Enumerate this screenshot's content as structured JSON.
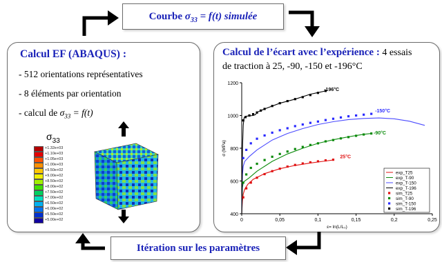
{
  "top_pill": {
    "prefix": "Courbe ",
    "sigma": "σ",
    "sub": "33",
    "suffix": " = f(t) simulée"
  },
  "bottom_pill": {
    "text": "Itération sur les paramètres"
  },
  "left_box": {
    "title": "Calcul EF (ABAQUS) :",
    "item1": "- 512 orientations représentatives",
    "item2": "- 8 éléments par orientation",
    "item3_prefix": "- calcul de ",
    "item3_sigma": "σ",
    "item3_sub": "33",
    "item3_suffix": " = f(t)",
    "legend_title_sigma": "σ",
    "legend_title_sub": "33",
    "legend_values": [
      "+1.32e+03",
      "+1.10e+03",
      "+1.05e+03",
      "+1.00e+03",
      "+9.50e+02",
      "+9.00e+02",
      "+8.50e+02",
      "+8.00e+02",
      "+7.50e+02",
      "+7.00e+02",
      "+6.50e+02",
      "+6.00e+02",
      "+5.50e+02",
      "+5.00e+02"
    ],
    "legend_colors": [
      "#b40000",
      "#e40000",
      "#ff5000",
      "#ff9000",
      "#ffc800",
      "#f0f000",
      "#a0f000",
      "#40e000",
      "#00d060",
      "#00e0c0",
      "#00b0f0",
      "#0070f0",
      "#0030d0",
      "#1000a0"
    ]
  },
  "right_box": {
    "title": "Calcul de l’écart avec l’expérience :",
    "title_tail": " 4 essais",
    "subtitle": "de traction à 25, -90, -150 et -196°C"
  },
  "chart_data": {
    "type": "line",
    "ylabel": "σ (MPa)",
    "xlabel": "ε= ln(L/L₀)",
    "xlim": [
      0,
      0.25
    ],
    "ylim": [
      400,
      1200
    ],
    "xticks": [
      "0",
      "0,05",
      "0,1",
      "0,15",
      "0,2",
      "0,25"
    ],
    "yticks": [
      "400",
      "600",
      "800",
      "1000",
      "1200"
    ],
    "annotations": [
      {
        "text": "-196°C",
        "x": 0.108,
        "y": 1150,
        "color": "#000000"
      },
      {
        "text": "-150°C",
        "x": 0.175,
        "y": 1020,
        "color": "#2b2bff"
      },
      {
        "text": "-90°C",
        "x": 0.173,
        "y": 885,
        "color": "#0a8a0a"
      },
      {
        "text": "25°C",
        "x": 0.129,
        "y": 740,
        "color": "#e01010"
      }
    ],
    "legend": {
      "position": "bottom-right",
      "entries": [
        "exp_T25",
        "exp_T-90",
        "exp_T-150",
        "exp_T-196",
        "sim_T25",
        "sim_T-90",
        "sim_T-150",
        "sim_T-196"
      ]
    },
    "series": [
      {
        "name": "exp_T25",
        "color": "#e01010",
        "x": [
          0,
          0.001,
          0.002,
          0.004,
          0.008,
          0.015,
          0.03,
          0.05,
          0.07,
          0.09,
          0.11,
          0.12
        ],
        "y": [
          400,
          480,
          520,
          550,
          580,
          610,
          645,
          675,
          695,
          710,
          722,
          728
        ]
      },
      {
        "name": "exp_T-90",
        "color": "#0a8a0a",
        "x": [
          0,
          0.001,
          0.002,
          0.004,
          0.01,
          0.02,
          0.04,
          0.06,
          0.08,
          0.1,
          0.12,
          0.14,
          0.16,
          0.17
        ],
        "y": [
          400,
          560,
          590,
          600,
          620,
          660,
          720,
          765,
          800,
          830,
          852,
          870,
          885,
          890
        ]
      },
      {
        "name": "exp_T-150",
        "color": "#4a4aff",
        "x": [
          0,
          0.001,
          0.002,
          0.004,
          0.01,
          0.02,
          0.04,
          0.06,
          0.08,
          0.1,
          0.12,
          0.14,
          0.16,
          0.18,
          0.2,
          0.22,
          0.24
        ],
        "y": [
          400,
          640,
          690,
          720,
          750,
          790,
          850,
          890,
          920,
          945,
          962,
          975,
          982,
          985,
          980,
          965,
          940
        ]
      },
      {
        "name": "exp_T-196",
        "color": "#000000",
        "x": [
          0,
          0.001,
          0.002,
          0.003,
          0.005,
          0.01,
          0.015,
          0.018,
          0.02,
          0.03,
          0.05,
          0.07,
          0.09,
          0.1,
          0.11
        ],
        "y": [
          400,
          800,
          940,
          985,
          995,
          998,
          1000,
          1005,
          1020,
          1040,
          1075,
          1100,
          1130,
          1140,
          1150
        ]
      },
      {
        "name": "sim_T25",
        "color": "#e01010",
        "marker": true,
        "x": [
          0.002,
          0.006,
          0.012,
          0.02,
          0.03,
          0.04,
          0.05,
          0.06,
          0.07,
          0.08,
          0.09,
          0.1,
          0.11,
          0.12
        ],
        "y": [
          500,
          555,
          590,
          620,
          642,
          660,
          675,
          688,
          698,
          707,
          714,
          720,
          726,
          730
        ]
      },
      {
        "name": "sim_T-90",
        "color": "#0a8a0a",
        "marker": true,
        "x": [
          0.002,
          0.006,
          0.012,
          0.02,
          0.03,
          0.04,
          0.05,
          0.06,
          0.07,
          0.08,
          0.09,
          0.1,
          0.11,
          0.12,
          0.13,
          0.14,
          0.15,
          0.16,
          0.17
        ],
        "y": [
          590,
          640,
          680,
          705,
          728,
          748,
          765,
          780,
          795,
          808,
          820,
          830,
          842,
          850,
          860,
          868,
          876,
          884,
          890
        ]
      },
      {
        "name": "sim_T-150",
        "color": "#2b2bff",
        "marker": true,
        "x": [
          0.002,
          0.006,
          0.012,
          0.02,
          0.03,
          0.04,
          0.05,
          0.06,
          0.07,
          0.08,
          0.09,
          0.1,
          0.11,
          0.12,
          0.13,
          0.14,
          0.15,
          0.16,
          0.17
        ],
        "y": [
          740,
          790,
          830,
          858,
          878,
          895,
          910,
          922,
          935,
          945,
          955,
          963,
          972,
          980,
          988,
          995,
          1000,
          1005,
          1010
        ]
      },
      {
        "name": "sim_T-196",
        "color": "#000000",
        "marker": true,
        "x": [
          0.002,
          0.005,
          0.01,
          0.015,
          0.02,
          0.025,
          0.03,
          0.04,
          0.05,
          0.06,
          0.07,
          0.08,
          0.09,
          0.1,
          0.11
        ],
        "y": [
          970,
          990,
          1000,
          1008,
          1018,
          1030,
          1040,
          1058,
          1075,
          1088,
          1100,
          1112,
          1125,
          1138,
          1150
        ]
      }
    ]
  }
}
